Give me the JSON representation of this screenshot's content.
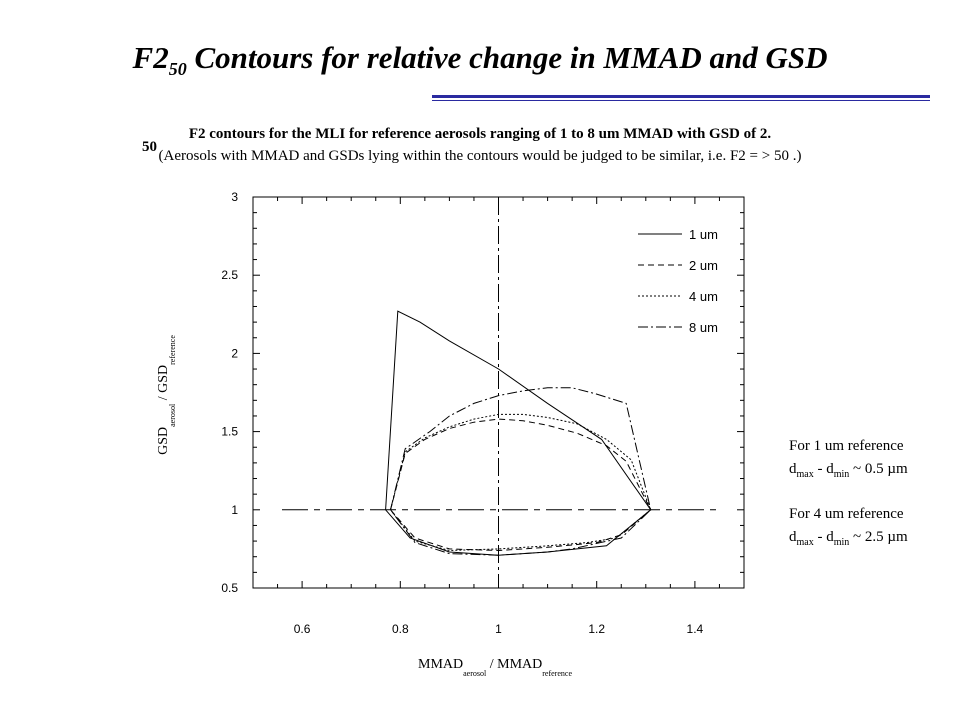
{
  "title": {
    "main": "F2",
    "sub": "50",
    "rest": " Contours for relative change in MMAD and GSD"
  },
  "caption": {
    "line1": "F2   contours for the MLI for reference aerosols ranging of 1 to 8 um MMAD with GSD of 2.",
    "line1_sub": "50",
    "line2": "(Aerosols with MMAD and GSDs lying within the contours would be judged to be similar, i.e. F2 = > 50 .)"
  },
  "notes": [
    {
      "line1": "For 1 um reference",
      "d1": "d",
      "s1": "max",
      "mid": " - d",
      "s2": "min",
      "tail": " ~ 0.5 µm"
    },
    {
      "line1": "For 4 um reference",
      "d1": "d",
      "s1": "max",
      "mid": " - d",
      "s2": "min",
      "tail": " ~ 2.5 µm"
    }
  ],
  "colors": {
    "rule": "#2a2aa0",
    "line": "#000000"
  },
  "chart_data": {
    "type": "line",
    "xlabel": {
      "main1": "MMAD",
      "sub1": "aerosol",
      "sep": " / ",
      "main2": "MMAD",
      "sub2": "reference"
    },
    "ylabel": {
      "main1": "GSD",
      "sub1": "aerosol",
      "sep": " / ",
      "main2": "GSD",
      "sub2": "reference"
    },
    "xlim": [
      0.5,
      1.5
    ],
    "ylim": [
      0.5,
      3.0
    ],
    "xticks": [
      0.6,
      0.8,
      1,
      1.2,
      1.4
    ],
    "xtick_labels": [
      "0.6",
      "0.8",
      "1",
      "1.2",
      "1.4"
    ],
    "yticks": [
      0.5,
      1,
      1.5,
      2,
      2.5,
      3
    ],
    "ytick_labels": [
      "0.5",
      "1",
      "1.5",
      "2",
      "2.5",
      "3"
    ],
    "reference_lines": {
      "x": 1,
      "y": 1
    },
    "legend_position": "top-right",
    "series": [
      {
        "name": "1 um",
        "dash": "solid",
        "points": [
          [
            0.77,
            1.0
          ],
          [
            0.795,
            2.27
          ],
          [
            0.84,
            2.2
          ],
          [
            0.9,
            2.08
          ],
          [
            1.0,
            1.9
          ],
          [
            1.1,
            1.68
          ],
          [
            1.21,
            1.45
          ],
          [
            1.31,
            1.0
          ],
          [
            1.22,
            0.77
          ],
          [
            1.1,
            0.73
          ],
          [
            1.0,
            0.71
          ],
          [
            0.9,
            0.73
          ],
          [
            0.82,
            0.82
          ],
          [
            0.77,
            1.0
          ]
        ]
      },
      {
        "name": "2 um",
        "dash": "dashed",
        "points": [
          [
            0.78,
            1.0
          ],
          [
            0.81,
            1.36
          ],
          [
            0.85,
            1.45
          ],
          [
            0.9,
            1.52
          ],
          [
            0.95,
            1.56
          ],
          [
            1.0,
            1.58
          ],
          [
            1.05,
            1.57
          ],
          [
            1.1,
            1.54
          ],
          [
            1.16,
            1.49
          ],
          [
            1.22,
            1.41
          ],
          [
            1.26,
            1.31
          ],
          [
            1.31,
            1.0
          ],
          [
            1.25,
            0.84
          ],
          [
            1.2,
            0.79
          ],
          [
            1.1,
            0.76
          ],
          [
            1.0,
            0.74
          ],
          [
            0.9,
            0.75
          ],
          [
            0.83,
            0.82
          ],
          [
            0.78,
            1.0
          ]
        ]
      },
      {
        "name": "4 um",
        "dash": "dotted",
        "points": [
          [
            0.78,
            1.0
          ],
          [
            0.81,
            1.37
          ],
          [
            0.85,
            1.46
          ],
          [
            0.9,
            1.53
          ],
          [
            0.95,
            1.58
          ],
          [
            1.0,
            1.61
          ],
          [
            1.05,
            1.61
          ],
          [
            1.1,
            1.59
          ],
          [
            1.16,
            1.55
          ],
          [
            1.22,
            1.45
          ],
          [
            1.27,
            1.32
          ],
          [
            1.31,
            1.0
          ],
          [
            1.24,
            0.82
          ],
          [
            1.18,
            0.79
          ],
          [
            1.1,
            0.77
          ],
          [
            1.0,
            0.75
          ],
          [
            0.9,
            0.74
          ],
          [
            0.83,
            0.8
          ],
          [
            0.78,
            1.0
          ]
        ]
      },
      {
        "name": "8 um",
        "dash": "dashdot",
        "points": [
          [
            0.78,
            1.0
          ],
          [
            0.81,
            1.39
          ],
          [
            0.86,
            1.5
          ],
          [
            0.9,
            1.6
          ],
          [
            0.95,
            1.68
          ],
          [
            1.0,
            1.73
          ],
          [
            1.05,
            1.76
          ],
          [
            1.1,
            1.78
          ],
          [
            1.15,
            1.78
          ],
          [
            1.2,
            1.74
          ],
          [
            1.26,
            1.68
          ],
          [
            1.31,
            1.0
          ],
          [
            1.25,
            0.82
          ],
          [
            1.15,
            0.75
          ],
          [
            1.1,
            0.73
          ],
          [
            1.0,
            0.71
          ],
          [
            0.9,
            0.72
          ],
          [
            0.83,
            0.79
          ],
          [
            0.78,
            1.0
          ]
        ]
      }
    ]
  }
}
